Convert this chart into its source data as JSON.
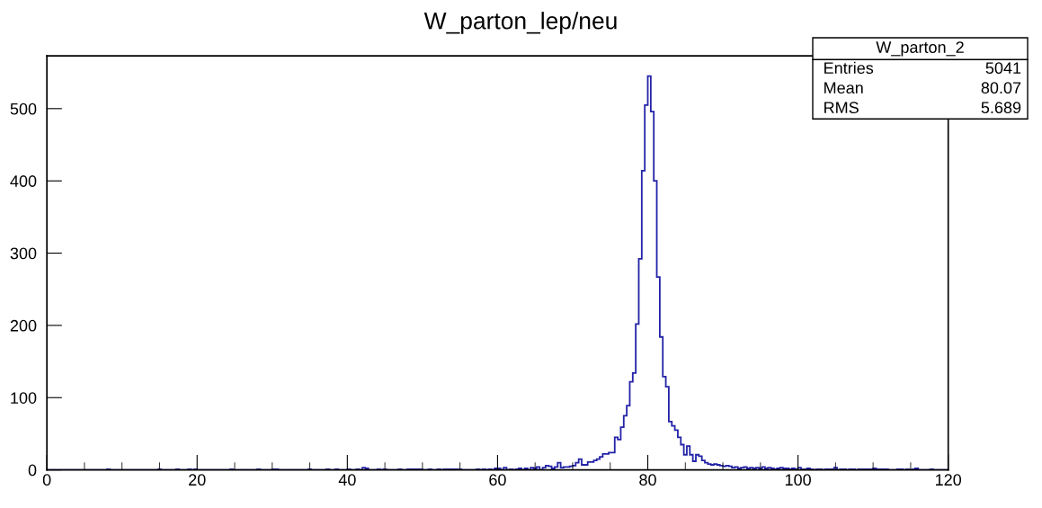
{
  "chart_data": {
    "type": "histogram",
    "title": "W_parton_lep/neu",
    "annotations": [
      "W_parton_2",
      "Entries",
      "5041",
      "Mean",
      "80.07",
      "RMS",
      "5.689"
    ],
    "color": "#2323a8",
    "bins": [
      0,
      0.4,
      0.8,
      1.2,
      1.6,
      2,
      2.4,
      2.8,
      3.2,
      3.6,
      4,
      4.4,
      4.8,
      5.2,
      5.6,
      6,
      6.4,
      6.8,
      7.2,
      7.6,
      8,
      8.4,
      8.8,
      9.2,
      9.6,
      10,
      10.4,
      10.8,
      11.2,
      11.6,
      12,
      12.4,
      12.8,
      13.2,
      13.6,
      14,
      14.4,
      14.8,
      15.2,
      15.6,
      16,
      16.4,
      16.8,
      17.2,
      17.6,
      18,
      18.4,
      18.8,
      19.2,
      19.6,
      20,
      20.4,
      20.8,
      21.2,
      21.6,
      22,
      22.4,
      22.8,
      23.2,
      23.6,
      24,
      24.4,
      24.8,
      25.2,
      25.6,
      26,
      26.4,
      26.8,
      27.2,
      27.6,
      28,
      28.4,
      28.8,
      29.2,
      29.6,
      30,
      30.4,
      30.8,
      31.2,
      31.6,
      32,
      32.4,
      32.8,
      33.2,
      33.6,
      34,
      34.4,
      34.8,
      35.2,
      35.6,
      36,
      36.4,
      36.8,
      37.2,
      37.6,
      38,
      38.4,
      38.8,
      39.2,
      39.6,
      40,
      40.4,
      40.8,
      41.2,
      41.6,
      42,
      42.4,
      42.8,
      43.2,
      43.6,
      44,
      44.4,
      44.8,
      45.2,
      45.6,
      46,
      46.4,
      46.8,
      47.2,
      47.6,
      48,
      48.4,
      48.8,
      49.2,
      49.6,
      50,
      50.4,
      50.8,
      51.2,
      51.6,
      52,
      52.4,
      52.8,
      53.2,
      53.6,
      54,
      54.4,
      54.8,
      55.2,
      55.6,
      56,
      56.4,
      56.8,
      57.2,
      57.6,
      58,
      58.4,
      58.8,
      59.2,
      59.6,
      60,
      60.4,
      60.8,
      61.2,
      61.6,
      62,
      62.4,
      62.8,
      63.2,
      63.6,
      64,
      64.4,
      64.8,
      65.2,
      65.6,
      66,
      66.4,
      66.8,
      67.2,
      67.6,
      68,
      68.4,
      68.8,
      69.2,
      69.6,
      70,
      70.4,
      70.8,
      71.2,
      71.6,
      72,
      72.4,
      72.8,
      73.2,
      73.6,
      74,
      74.4,
      74.8,
      75.2,
      75.6,
      76,
      76.4,
      76.8,
      77.2,
      77.6,
      78,
      78.4,
      78.8,
      79.2,
      79.6,
      80,
      80.4,
      80.8,
      81.2,
      81.6,
      82,
      82.4,
      82.8,
      83.2,
      83.6,
      84,
      84.4,
      84.8,
      85.2,
      85.6,
      86,
      86.4,
      86.8,
      87.2,
      87.6,
      88,
      88.4,
      88.8,
      89.2,
      89.6,
      90,
      90.4,
      90.8,
      91.2,
      91.6,
      92,
      92.4,
      92.8,
      93.2,
      93.6,
      94,
      94.4,
      94.8,
      95.2,
      95.6,
      96,
      96.4,
      96.8,
      97.2,
      97.6,
      98,
      98.4,
      98.8,
      99.2,
      99.6,
      100,
      100.4,
      100.8,
      101.2,
      101.6,
      102,
      102.4,
      102.8,
      103.2,
      103.6,
      104,
      104.4,
      104.8,
      105.2,
      105.6,
      106,
      106.4,
      106.8,
      107.2,
      107.6,
      108,
      108.4,
      108.8,
      109.2,
      109.6,
      110,
      110.4,
      110.8,
      111.2,
      111.6,
      112,
      112.4,
      112.8,
      113.2,
      113.6,
      114,
      114.4,
      114.8,
      115.2,
      115.6,
      116,
      116.4,
      116.8,
      117.2,
      117.6,
      118,
      118.4,
      118.8,
      119.2,
      119.6,
      120
    ],
    "values": [
      0,
      0,
      0,
      0,
      0,
      0,
      0,
      0,
      0,
      0,
      0,
      0,
      0,
      0,
      0,
      0,
      0,
      0,
      0,
      0,
      1,
      0,
      0,
      0,
      0,
      0,
      0,
      0,
      0,
      0,
      0,
      0,
      0,
      0,
      0,
      0,
      0,
      1,
      0,
      0,
      0,
      0,
      0,
      1,
      0,
      0,
      0,
      1,
      0,
      1,
      0,
      0,
      0,
      0,
      0,
      0,
      0,
      0,
      0,
      0,
      0,
      1,
      0,
      0,
      0,
      0,
      0,
      0,
      0,
      0,
      1,
      0,
      0,
      0,
      0,
      1,
      1,
      0,
      0,
      0,
      0,
      0,
      0,
      0,
      0,
      0,
      0,
      1,
      0,
      0,
      0,
      0,
      0,
      1,
      0,
      0,
      1,
      0,
      0,
      0,
      1,
      0,
      0,
      1,
      0,
      3,
      2,
      0,
      0,
      0,
      1,
      0,
      1,
      0,
      0,
      0,
      0,
      1,
      0,
      0,
      1,
      1,
      1,
      1,
      1,
      0,
      0,
      1,
      0,
      0,
      1,
      0,
      1,
      1,
      1,
      1,
      1,
      1,
      0,
      0,
      0,
      0,
      0,
      1,
      0,
      1,
      0,
      1,
      0,
      2,
      2,
      0,
      3,
      0,
      1,
      0,
      1,
      2,
      0,
      2,
      0,
      3,
      2,
      4,
      0,
      3,
      6,
      5,
      2,
      4,
      10,
      3,
      4,
      4,
      5,
      6,
      10,
      15,
      7,
      7,
      11,
      11,
      13,
      15,
      18,
      22,
      22,
      24,
      24,
      45,
      42,
      59,
      75,
      89,
      122,
      134,
      202,
      292,
      414,
      505,
      545,
      496,
      400,
      267,
      184,
      129,
      115,
      67,
      61,
      55,
      45,
      35,
      21,
      33,
      21,
      12,
      21,
      19,
      13,
      10,
      8,
      7,
      8,
      7,
      6,
      5,
      6,
      5,
      3,
      4,
      2,
      3,
      4,
      2,
      3,
      2,
      3,
      2,
      4,
      2,
      3,
      2,
      1,
      2,
      3,
      2,
      2,
      1,
      2,
      1,
      3,
      1,
      1,
      2,
      1,
      0,
      1,
      1,
      0,
      1,
      1,
      1,
      3,
      0,
      1,
      1,
      0,
      1,
      1,
      0,
      1,
      1,
      1,
      1,
      1,
      2,
      1,
      1,
      1,
      1,
      0,
      0,
      0,
      1,
      1,
      0,
      1,
      0,
      1,
      2,
      0,
      0,
      0,
      0,
      1,
      0,
      0,
      0,
      0,
      0
    ],
    "xlim": [
      0,
      120
    ],
    "xticks": [
      0,
      {
        "value": 5,
        "label": null
      },
      {
        "value": 10,
        "label": null
      },
      {
        "value": 15,
        "label": null
      },
      20,
      {
        "value": 25,
        "label": null
      },
      {
        "value": 30,
        "label": null
      },
      {
        "value": 35,
        "label": null
      },
      40,
      {
        "value": 45,
        "label": null
      },
      {
        "value": 50,
        "label": null
      },
      {
        "value": 55,
        "label": null
      },
      60,
      {
        "value": 65,
        "label": null
      },
      {
        "value": 70,
        "label": null
      },
      {
        "value": 75,
        "label": null
      },
      80,
      {
        "value": 85,
        "label": null
      },
      {
        "value": 90,
        "label": null
      },
      {
        "value": 95,
        "label": null
      },
      100,
      {
        "value": 105,
        "label": null
      },
      {
        "value": 110,
        "label": null
      },
      {
        "value": 115,
        "label": null
      },
      120
    ],
    "ylim": [
      0,
      573
    ],
    "yticks": [
      0,
      100,
      200,
      300,
      400,
      500
    ]
  }
}
